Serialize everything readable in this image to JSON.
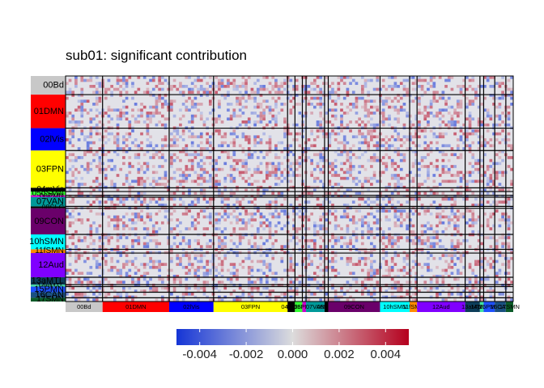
{
  "chart_data": {
    "type": "heatmap",
    "title": "sub01: significant contribution",
    "networks": [
      {
        "label": "00Bd",
        "color": "#c8c8c8",
        "size": 10
      },
      {
        "label": "01DMN",
        "color": "#ff0000",
        "size": 18
      },
      {
        "label": "02lVis",
        "color": "#0000ff",
        "size": 12
      },
      {
        "label": "03FPN",
        "color": "#ffff00",
        "size": 20
      },
      {
        "label": "04mVis",
        "color": "#000000",
        "size": 2
      },
      {
        "label": "05dSMN",
        "color": "#33ff33",
        "size": 2
      },
      {
        "label": "06PMN",
        "color": "#cc00cc",
        "size": 1
      },
      {
        "label": "07VAN",
        "color": "#009999",
        "size": 5
      },
      {
        "label": "08SLC",
        "color": "#000000",
        "size": 1
      },
      {
        "label": "09CON",
        "color": "#6a006a",
        "size": 14
      },
      {
        "label": "10hSMN",
        "color": "#00ffff",
        "size": 8
      },
      {
        "label": "11fSMN",
        "color": "#ff8c00",
        "size": 2
      },
      {
        "label": "12Aud",
        "color": "#8000ff",
        "size": 13
      },
      {
        "label": "13aMTL",
        "color": "#0d3d5a",
        "size": 4
      },
      {
        "label": "14pMTL",
        "color": "#40e0a0",
        "size": 1
      },
      {
        "label": "15PMN",
        "color": "#1e50ff",
        "size": 3
      },
      {
        "label": "16CAN",
        "color": "#1a5080",
        "size": 3
      },
      {
        "label": "17SMN",
        "color": "#0a5a28",
        "size": 2
      }
    ],
    "colorbar": {
      "low_color": "#1535d6",
      "mid_color": "#dcdcdc",
      "high_color": "#b5001e",
      "ticks": [
        "-0.004",
        "-0.002",
        "0.000",
        "0.002",
        "0.004"
      ],
      "tick_values": [
        -0.004,
        -0.002,
        0.0,
        0.002,
        0.004
      ],
      "range": [
        -0.005,
        0.005
      ]
    }
  }
}
